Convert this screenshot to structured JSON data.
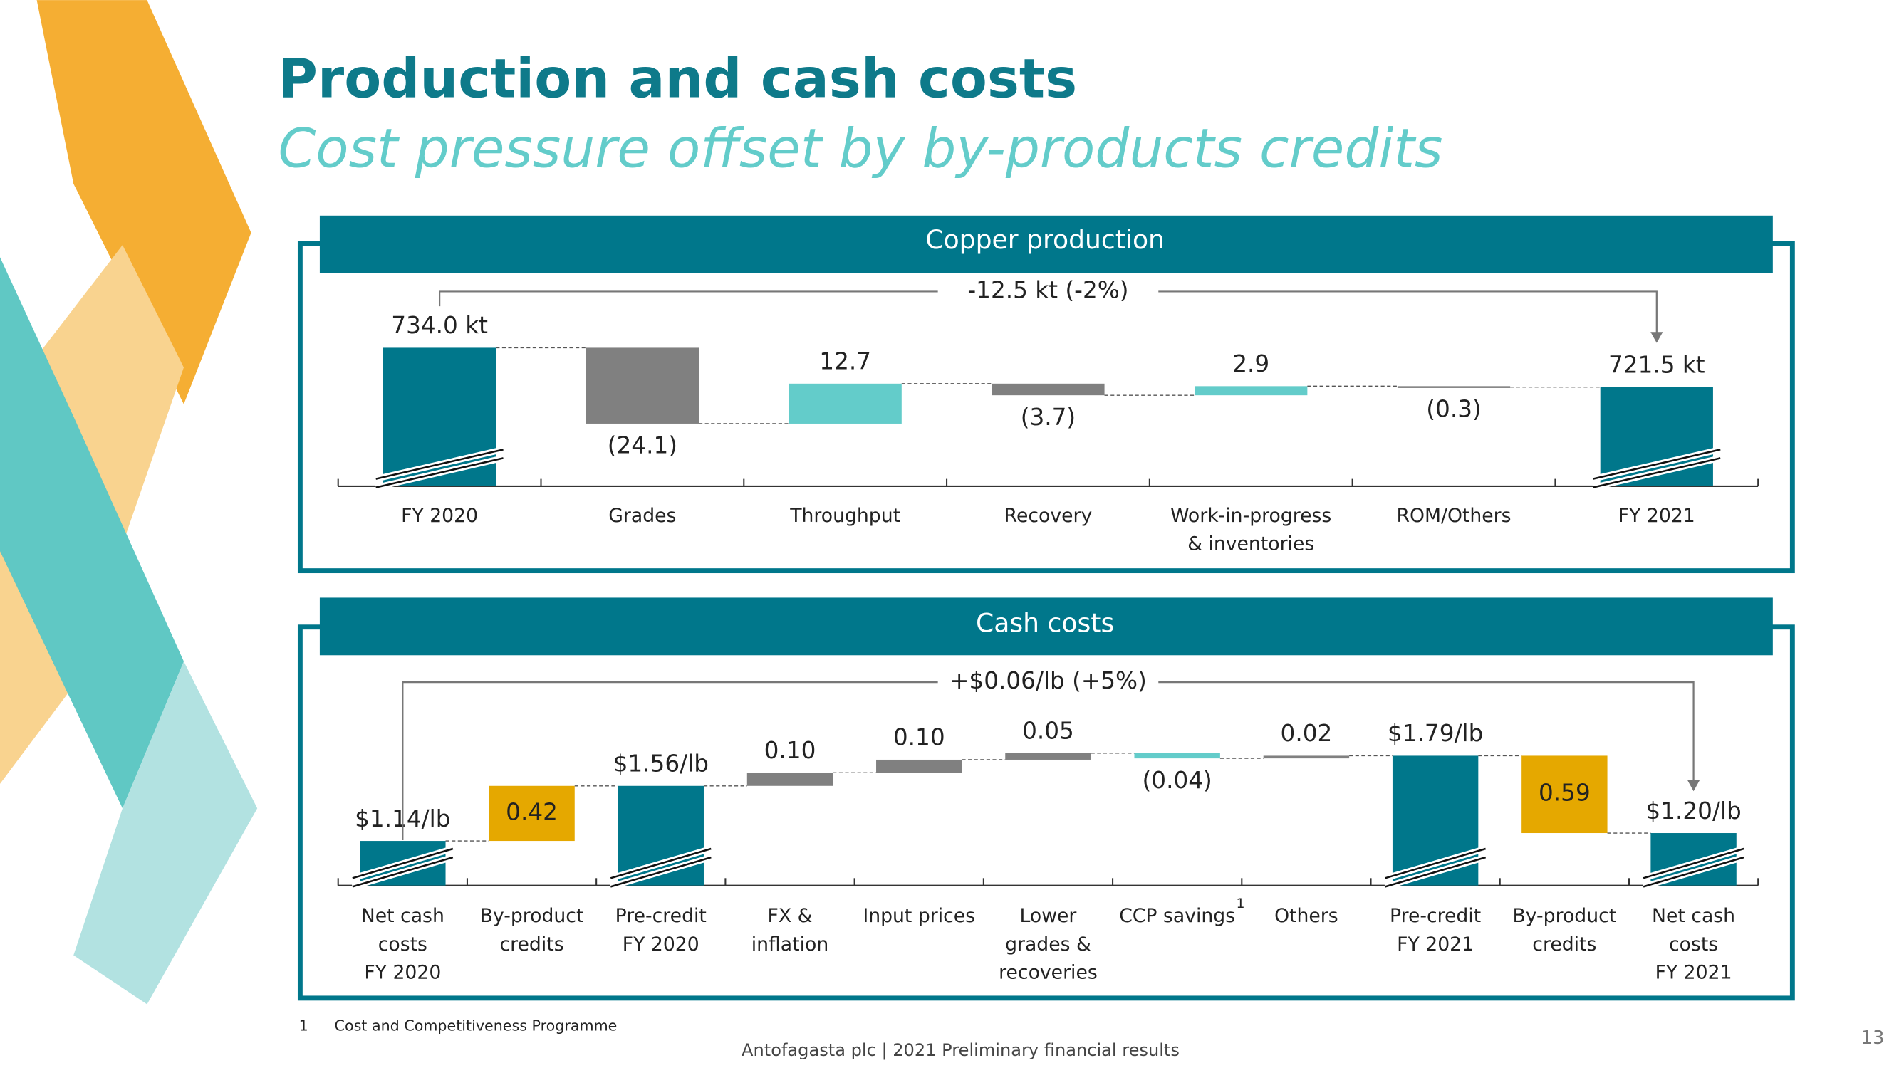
{
  "title": "Production and cash costs",
  "subtitle": "Cost pressure offset by by-products credits",
  "footnote": {
    "marker": "1",
    "text": "Cost and Competitiveness Programme"
  },
  "footer": "Antofagasta plc | 2021 Preliminary financial results",
  "page_number": "13",
  "chart_data": [
    {
      "type": "waterfall",
      "title": "Copper production",
      "annotation": "-12.5 kt (-2%)",
      "categories": [
        "FY 2020",
        "Grades",
        "Throughput",
        "Recovery",
        "Work-in-progress\n& inventories",
        "ROM/Others",
        "FY 2021"
      ],
      "values": [
        734.0,
        -24.1,
        12.7,
        -3.7,
        2.9,
        -0.3,
        721.5
      ],
      "value_labels": [
        "734.0 kt",
        "(24.1)",
        "12.7",
        "(3.7)",
        "2.9",
        "(0.3)",
        "721.5 kt"
      ],
      "measure": [
        "absolute",
        "relative",
        "relative",
        "relative",
        "relative",
        "relative",
        "absolute"
      ],
      "label_positions": [
        "above",
        "below",
        "above",
        "below",
        "above",
        "below",
        "above"
      ],
      "colors": [
        "#00778b",
        "#808080",
        "#63ccca",
        "#808080",
        "#63ccca",
        "#808080",
        "#00778b"
      ],
      "ylim": [
        690,
        740
      ]
    },
    {
      "type": "waterfall",
      "title": "Cash costs",
      "annotation": "+$0.06/lb (+5%)",
      "categories": [
        "Net cash\ncosts\nFY 2020",
        "By-product\ncredits",
        "Pre-credit\nFY 2020",
        "FX &\ninflation",
        "Input prices",
        "Lower\ngrades &\nrecoveries",
        "CCP savings",
        "Others",
        "Pre-credit\nFY 2021",
        "By-product\ncredits",
        "Net cash\ncosts\nFY 2021"
      ],
      "values": [
        1.14,
        0.42,
        1.56,
        0.1,
        0.1,
        0.05,
        -0.04,
        0.02,
        1.79,
        -0.59,
        1.2
      ],
      "value_labels": [
        "$1.14/lb",
        "0.42",
        "$1.56/lb",
        "0.10",
        "0.10",
        "0.05",
        "(0.04)",
        "0.02",
        "$1.79/lb",
        "0.59",
        "$1.20/lb"
      ],
      "measure": [
        "absolute",
        "relative",
        "absolute",
        "relative",
        "relative",
        "relative",
        "relative",
        "relative",
        "absolute",
        "relative",
        "absolute"
      ],
      "label_positions": [
        "above",
        "inside",
        "above",
        "above",
        "above",
        "above",
        "below",
        "above",
        "above",
        "inside",
        "above"
      ],
      "colors": [
        "#00778b",
        "#e5a800",
        "#00778b",
        "#808080",
        "#808080",
        "#808080",
        "#63ccca",
        "#808080",
        "#00778b",
        "#e5a800",
        "#00778b"
      ],
      "ylim": [
        0.8,
        1.9
      ]
    }
  ]
}
